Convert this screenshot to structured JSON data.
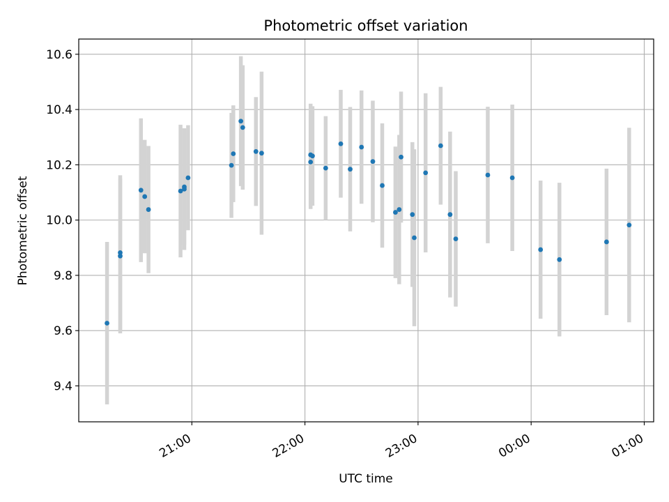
{
  "chart_data": {
    "type": "scatter",
    "title": "Photometric offset variation",
    "xlabel": "UTC time",
    "ylabel": "Photometric offset",
    "xlim": [
      "20:00",
      "01:05"
    ],
    "ylim": [
      9.27,
      10.655
    ],
    "grid": true,
    "x_ticks": [
      "21:00",
      "22:00",
      "23:00",
      "00:00",
      "01:00"
    ],
    "y_ticks": [
      "9.4",
      "9.6",
      "9.8",
      "10.0",
      "10.2",
      "10.4",
      "10.6"
    ],
    "series": [
      {
        "marker_color": "#1f77b4",
        "errorbar_color": "#d3d3d3",
        "points": [
          {
            "x": "20:15",
            "y": 9.627,
            "err": 0.294
          },
          {
            "x": "20:22",
            "y": 9.87,
            "err": 0.28
          },
          {
            "x": "20:22",
            "y": 9.882,
            "err": 0.28
          },
          {
            "x": "20:33",
            "y": 10.108,
            "err": 0.26
          },
          {
            "x": "20:35",
            "y": 10.085,
            "err": 0.205
          },
          {
            "x": "20:37",
            "y": 10.038,
            "err": 0.23
          },
          {
            "x": "20:54",
            "y": 10.105,
            "err": 0.24
          },
          {
            "x": "20:56",
            "y": 10.12,
            "err": 0.21
          },
          {
            "x": "20:56",
            "y": 10.112,
            "err": 0.22
          },
          {
            "x": "20:58",
            "y": 10.153,
            "err": 0.19
          },
          {
            "x": "21:21",
            "y": 10.198,
            "err": 0.19
          },
          {
            "x": "21:22",
            "y": 10.24,
            "err": 0.175
          },
          {
            "x": "21:26",
            "y": 10.358,
            "err": 0.235
          },
          {
            "x": "21:27",
            "y": 10.335,
            "err": 0.225
          },
          {
            "x": "21:34",
            "y": 10.248,
            "err": 0.197
          },
          {
            "x": "21:37",
            "y": 10.242,
            "err": 0.295
          },
          {
            "x": "22:03",
            "y": 10.236,
            "err": 0.185
          },
          {
            "x": "22:03",
            "y": 10.21,
            "err": 0.17
          },
          {
            "x": "22:04",
            "y": 10.232,
            "err": 0.18
          },
          {
            "x": "22:11",
            "y": 10.188,
            "err": 0.188
          },
          {
            "x": "22:19",
            "y": 10.276,
            "err": 0.195
          },
          {
            "x": "22:24",
            "y": 10.184,
            "err": 0.225
          },
          {
            "x": "22:30",
            "y": 10.264,
            "err": 0.205
          },
          {
            "x": "22:36",
            "y": 10.212,
            "err": 0.22
          },
          {
            "x": "22:41",
            "y": 10.125,
            "err": 0.225
          },
          {
            "x": "22:48",
            "y": 10.028,
            "err": 0.238
          },
          {
            "x": "22:50",
            "y": 10.038,
            "err": 0.27
          },
          {
            "x": "22:51",
            "y": 10.228,
            "err": 0.237
          },
          {
            "x": "22:57",
            "y": 10.02,
            "err": 0.262
          },
          {
            "x": "22:58",
            "y": 9.936,
            "err": 0.32
          },
          {
            "x": "23:04",
            "y": 10.171,
            "err": 0.288
          },
          {
            "x": "23:12",
            "y": 10.269,
            "err": 0.213
          },
          {
            "x": "23:17",
            "y": 10.02,
            "err": 0.3
          },
          {
            "x": "23:20",
            "y": 9.932,
            "err": 0.245
          },
          {
            "x": "23:37",
            "y": 10.163,
            "err": 0.247
          },
          {
            "x": "23:50",
            "y": 10.153,
            "err": 0.265
          },
          {
            "x": "00:05",
            "y": 9.893,
            "err": 0.25
          },
          {
            "x": "00:15",
            "y": 9.857,
            "err": 0.278
          },
          {
            "x": "00:40",
            "y": 9.921,
            "err": 0.265
          },
          {
            "x": "00:52",
            "y": 9.982,
            "err": 0.352
          }
        ]
      }
    ]
  }
}
